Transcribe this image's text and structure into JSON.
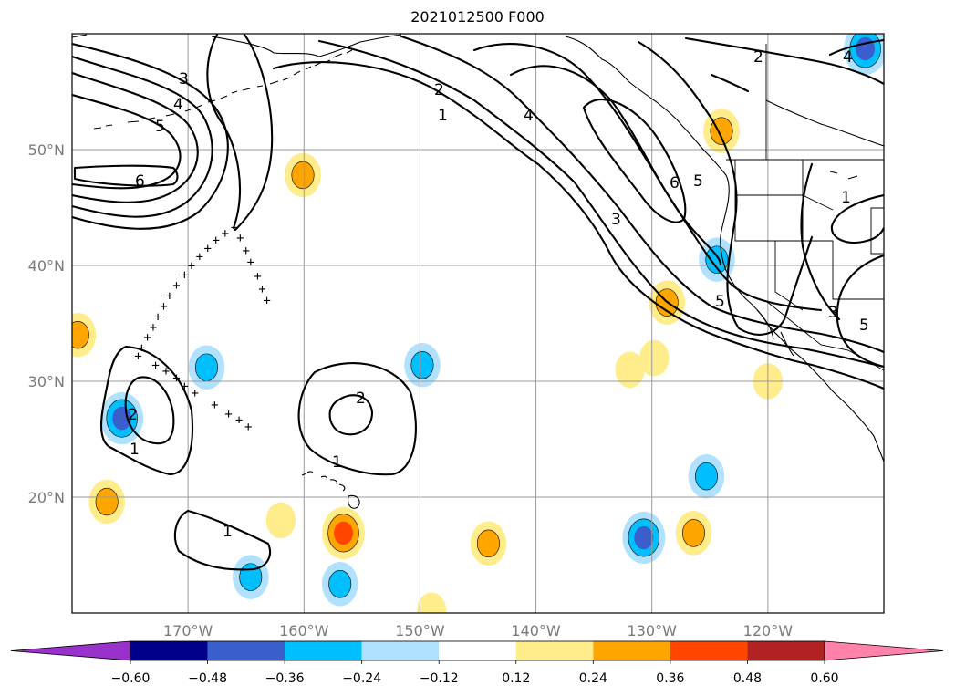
{
  "title": "2021012500 F000",
  "map": {
    "projection": "PlateCarree",
    "extent": {
      "lon_min": -180,
      "lon_max": -110,
      "lat_min": 10,
      "lat_max": 60
    },
    "lat_ticks": [
      {
        "value": 20,
        "label": "20°N"
      },
      {
        "value": 30,
        "label": "30°N"
      },
      {
        "value": 40,
        "label": "40°N"
      },
      {
        "value": 50,
        "label": "50°N"
      }
    ],
    "lon_ticks": [
      {
        "value": -170,
        "label": "170°W"
      },
      {
        "value": -160,
        "label": "160°W"
      },
      {
        "value": -150,
        "label": "150°W"
      },
      {
        "value": -140,
        "label": "140°W"
      },
      {
        "value": -130,
        "label": "130°W"
      },
      {
        "value": -120,
        "label": "120°W"
      }
    ],
    "gridlines": true,
    "contour_labels": [
      "1",
      "2",
      "3",
      "4",
      "5",
      "6"
    ],
    "colors": {
      "grid": "#9a9a9a",
      "coast": "#000000",
      "contour": "#000000"
    }
  },
  "colorbar": {
    "orientation": "horizontal",
    "extend": "both",
    "colors": [
      "#9932cc",
      "#00008b",
      "#3a5fcd",
      "#00bfff",
      "#b0e2ff",
      "#ffffff",
      "#ffec8b",
      "#ffa500",
      "#ff4500",
      "#b22222",
      "#ff82ab"
    ],
    "tick_labels": [
      "−0.60",
      "−0.48",
      "−0.36",
      "−0.24",
      "−0.12",
      "0.12",
      "0.24",
      "0.36",
      "0.48",
      "0.60"
    ]
  },
  "chart_data": {
    "type": "heatmap",
    "title": "2021012500 F000",
    "xlabel": "",
    "ylabel": "",
    "xlim": [
      -180,
      -110
    ],
    "ylim": [
      10,
      60
    ],
    "levels": [
      -0.6,
      -0.48,
      -0.36,
      -0.24,
      -0.12,
      0.12,
      0.24,
      0.36,
      0.48,
      0.6
    ],
    "contour_levels": [
      1,
      2,
      3,
      4,
      5,
      6
    ],
    "grid": true,
    "colorbar": "bottom",
    "fill_blobs": [
      {
        "lon": -175.7,
        "lat": 26.8,
        "value": -0.42
      },
      {
        "lon": -168.4,
        "lat": 31.2,
        "value": -0.28
      },
      {
        "lon": -149.8,
        "lat": 31.4,
        "value": -0.28
      },
      {
        "lon": -124.4,
        "lat": 40.5,
        "value": -0.3
      },
      {
        "lon": -130.7,
        "lat": 16.5,
        "value": -0.42
      },
      {
        "lon": -125.3,
        "lat": 21.8,
        "value": -0.3
      },
      {
        "lon": -156.9,
        "lat": 12.5,
        "value": -0.28
      },
      {
        "lon": -164.6,
        "lat": 13.1,
        "value": -0.26
      },
      {
        "lon": -111.6,
        "lat": 58.7,
        "value": -0.4
      },
      {
        "lon": -156.6,
        "lat": 16.9,
        "value": 0.4
      },
      {
        "lon": -144.1,
        "lat": 16.0,
        "value": 0.3
      },
      {
        "lon": -126.4,
        "lat": 16.9,
        "value": 0.3
      },
      {
        "lon": -128.7,
        "lat": 36.8,
        "value": 0.3
      },
      {
        "lon": -124.0,
        "lat": 51.6,
        "value": 0.28
      },
      {
        "lon": -177.0,
        "lat": 19.6,
        "value": 0.28
      },
      {
        "lon": -179.5,
        "lat": 34.0,
        "value": 0.3
      },
      {
        "lon": -160.1,
        "lat": 47.8,
        "value": 0.26
      },
      {
        "lon": -131.9,
        "lat": 31.0,
        "value": 0.2
      },
      {
        "lon": -129.8,
        "lat": 32.0,
        "value": 0.18
      },
      {
        "lon": -162.0,
        "lat": 18.0,
        "value": 0.18
      },
      {
        "lon": -120.0,
        "lat": 30.0,
        "value": 0.16
      },
      {
        "lon": -149.0,
        "lat": 10.2,
        "value": 0.18
      }
    ],
    "track_points": [
      [
        -166.0,
        43.3
      ],
      [
        -166.8,
        42.8
      ],
      [
        -167.6,
        42.2
      ],
      [
        -168.3,
        41.5
      ],
      [
        -169.0,
        40.8
      ],
      [
        -169.7,
        40.0
      ],
      [
        -170.3,
        39.2
      ],
      [
        -171.0,
        38.3
      ],
      [
        -171.6,
        37.4
      ],
      [
        -172.1,
        36.5
      ],
      [
        -172.6,
        35.6
      ],
      [
        -173.0,
        34.7
      ],
      [
        -173.5,
        33.8
      ],
      [
        -174.0,
        32.9
      ],
      [
        -174.3,
        32.2
      ],
      [
        -172.8,
        31.4
      ],
      [
        -171.9,
        30.9
      ],
      [
        -171.0,
        30.3
      ],
      [
        -170.3,
        29.6
      ],
      [
        -169.4,
        29.0
      ],
      [
        -167.7,
        28.0
      ],
      [
        -166.5,
        27.2
      ],
      [
        -165.6,
        26.7
      ],
      [
        -164.8,
        26.1
      ],
      [
        -165.5,
        42.4
      ],
      [
        -165.0,
        41.3
      ],
      [
        -164.6,
        40.3
      ],
      [
        -164.0,
        39.1
      ],
      [
        -163.6,
        38.0
      ],
      [
        -163.2,
        37.0
      ]
    ]
  }
}
